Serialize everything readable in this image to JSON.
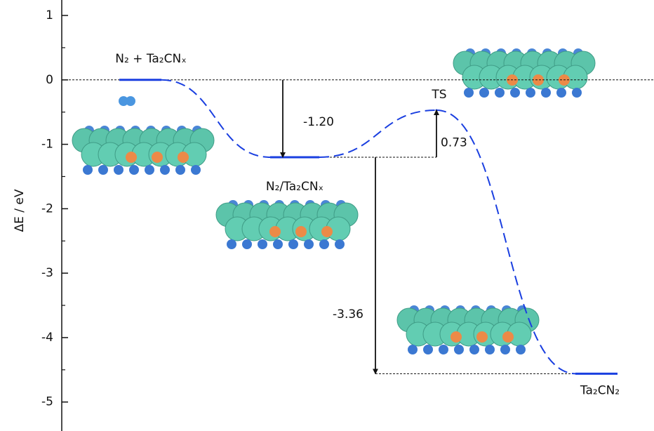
{
  "chart_data": {
    "type": "energy-profile",
    "y_label": "ΔE / eV",
    "states": [
      "N₂ + Ta₂CNₓ",
      "N₂/Ta₂CNₓ",
      "TS",
      "Ta₂CN₂"
    ],
    "values": [
      0,
      -1.2,
      -0.47,
      -4.56
    ],
    "energy_changes": [
      -1.2,
      0.73,
      -3.36
    ],
    "energy_change_labels": [
      "-1.20",
      "0.73",
      "-3.36"
    ],
    "ylim": [
      -5.45,
      1.24
    ],
    "yticks": [
      1,
      0,
      -1,
      -2,
      -3,
      -4,
      -5
    ],
    "yminorticks": [
      0.5,
      -0.5,
      -1.5,
      -2.5,
      -3.5,
      -4.5
    ],
    "color": "#1a3fe0"
  }
}
